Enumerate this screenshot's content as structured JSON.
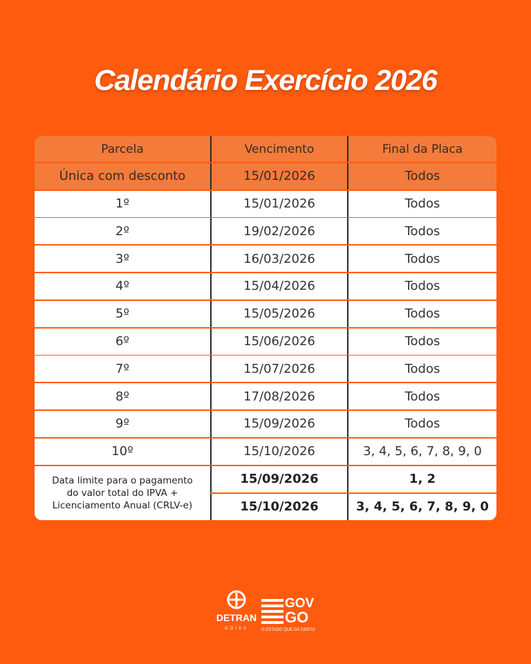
{
  "header": {
    "title": "Calendário Exercício 2026"
  },
  "table": {
    "columns": [
      "Parcela",
      "Vencimento",
      "Final da Placa"
    ],
    "highlight_row": [
      "Única com desconto",
      "15/01/2026",
      "Todos"
    ],
    "rows": [
      [
        "1º",
        "15/01/2026",
        "Todos"
      ],
      [
        "2º",
        "19/02/2026",
        "Todos"
      ],
      [
        "3º",
        "16/03/2026",
        "Todos"
      ],
      [
        "4º",
        "15/04/2026",
        "Todos"
      ],
      [
        "5º",
        "15/05/2026",
        "Todos"
      ],
      [
        "6º",
        "15/06/2026",
        "Todos"
      ],
      [
        "7º",
        "15/07/2026",
        "Todos"
      ],
      [
        "8º",
        "17/08/2026",
        "Todos"
      ],
      [
        "9º",
        "15/09/2026",
        "Todos"
      ],
      [
        "10º",
        "15/10/2026",
        "3, 4, 5, 6, 7, 8, 9, 0"
      ]
    ],
    "footer": {
      "label_lines": [
        "Data limite para o pagamento",
        "do valor total do IPVA +",
        "Licenciamento Anual (CRLV-e)"
      ],
      "rows": [
        [
          "15/09/2026",
          "1, 2"
        ],
        [
          "15/10/2026",
          "3, 4, 5, 6, 7, 8, 9, 0"
        ]
      ]
    }
  },
  "logos": {
    "detran": "DETRAN",
    "detran_state": "GOIÁS",
    "gov_top": "GOV",
    "gov_bottom": "GO",
    "gov_slogan": "O ESTADO QUE DÁ CERTO"
  }
}
